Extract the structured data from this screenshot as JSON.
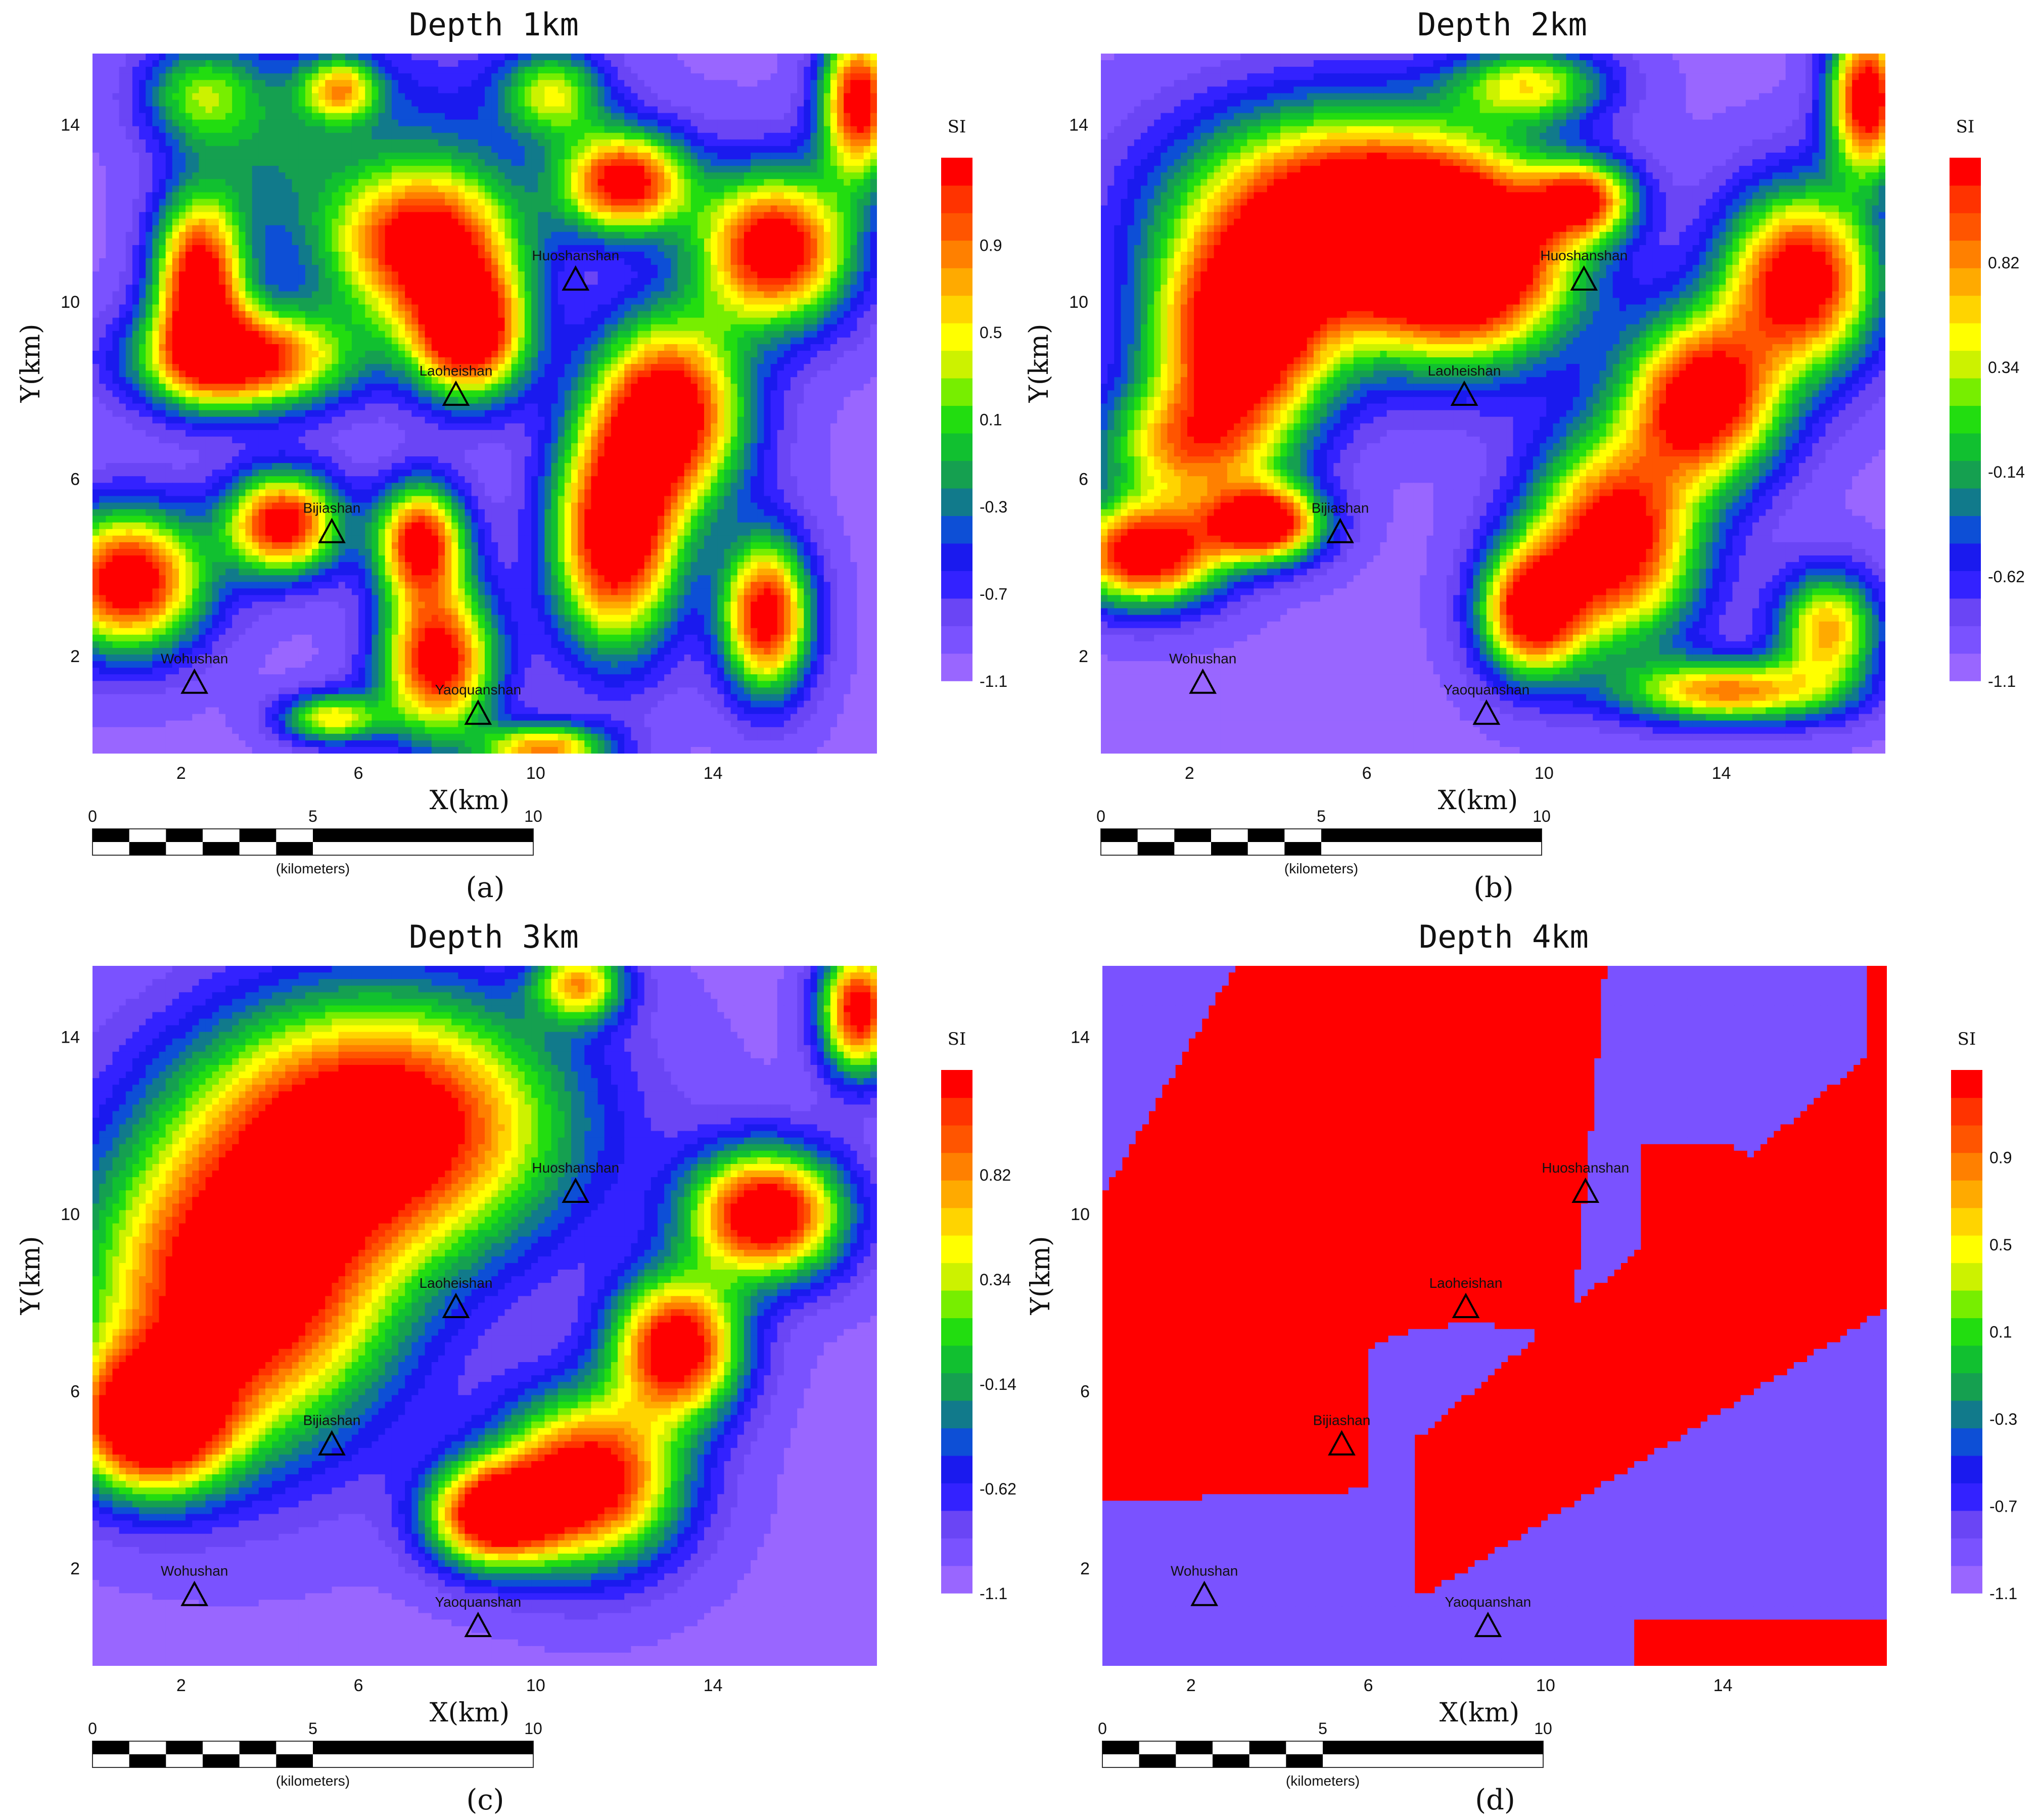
{
  "chart_data": [
    {
      "type": "heatmap",
      "panel_label": "(a)",
      "title": "Depth 1km",
      "xlabel": "X(km)",
      "ylabel": "Y(km)",
      "xticks": [
        "2",
        "6",
        "10",
        "14"
      ],
      "yticks": [
        "2",
        "6",
        "10",
        "14"
      ],
      "xlim": [
        0,
        17.7
      ],
      "ylim": [
        -0.2,
        15.6
      ],
      "colorbar": {
        "title": "SI",
        "ticks": [
          "0.9",
          "0.5",
          "0.1",
          "-0.3",
          "-0.7",
          "-1.1"
        ],
        "range": [
          -1.1,
          1.3
        ]
      },
      "stations": [
        {
          "name": "Huoshanshan",
          "x": 10.9,
          "y": 10.5
        },
        {
          "name": "Laoheishan",
          "x": 8.2,
          "y": 7.9
        },
        {
          "name": "Bijiashan",
          "x": 5.4,
          "y": 4.8
        },
        {
          "name": "Wohushan",
          "x": 2.3,
          "y": 1.4
        },
        {
          "name": "Yaoquanshan",
          "x": 8.7,
          "y": 0.7
        }
      ],
      "field_features": [
        {
          "x": 2.4,
          "y": 14.7,
          "v": -0.1,
          "sx": 0.9,
          "sy": 0.8
        },
        {
          "x": 7.0,
          "y": 14.5,
          "v": -0.7,
          "sx": 2.8,
          "sy": 1.2
        },
        {
          "x": 4.0,
          "y": 13.2,
          "v": -0.5,
          "sx": 1.3,
          "sy": 1.6
        },
        {
          "x": 2.4,
          "y": 10.5,
          "v": 1.1,
          "sx": 0.7,
          "sy": 1.3
        },
        {
          "x": 3.4,
          "y": 8.7,
          "v": 1.1,
          "sx": 1.6,
          "sy": 0.8
        },
        {
          "x": 7.5,
          "y": 11.3,
          "v": 1.2,
          "sx": 1.5,
          "sy": 1.3
        },
        {
          "x": 8.5,
          "y": 9.2,
          "v": 1.1,
          "sx": 0.9,
          "sy": 1.0
        },
        {
          "x": 12.0,
          "y": 12.7,
          "v": 1.1,
          "sx": 1.0,
          "sy": 0.8
        },
        {
          "x": 15.4,
          "y": 11.2,
          "v": 1.2,
          "sx": 1.2,
          "sy": 1.2
        },
        {
          "x": 13.0,
          "y": 7.5,
          "v": 1.2,
          "sx": 1.2,
          "sy": 1.5
        },
        {
          "x": 11.8,
          "y": 4.6,
          "v": 1.2,
          "sx": 1.0,
          "sy": 1.7
        },
        {
          "x": 17.3,
          "y": 14.5,
          "v": 1.1,
          "sx": 0.6,
          "sy": 1.2
        },
        {
          "x": 4.3,
          "y": 5.0,
          "v": 1.1,
          "sx": 0.9,
          "sy": 0.8
        },
        {
          "x": 7.4,
          "y": 4.6,
          "v": 1.0,
          "sx": 0.7,
          "sy": 0.9
        },
        {
          "x": 7.8,
          "y": 1.9,
          "v": 1.1,
          "sx": 0.9,
          "sy": 1.2
        },
        {
          "x": 0.8,
          "y": 3.7,
          "v": 1.2,
          "sx": 1.2,
          "sy": 1.1
        },
        {
          "x": 15.2,
          "y": 2.9,
          "v": 1.1,
          "sx": 0.7,
          "sy": 1.2
        },
        {
          "x": 5.6,
          "y": 14.8,
          "v": 0.2,
          "sx": 0.6,
          "sy": 0.5
        },
        {
          "x": 10.4,
          "y": 14.7,
          "v": 0.1,
          "sx": 0.8,
          "sy": 0.7
        },
        {
          "x": 5.4,
          "y": 0.6,
          "v": 0.3,
          "sx": 0.8,
          "sy": 0.4
        },
        {
          "x": 10.2,
          "y": -0.1,
          "v": 0.6,
          "sx": 1.0,
          "sy": 0.4
        }
      ]
    },
    {
      "type": "heatmap",
      "panel_label": "(b)",
      "title": "Depth 2km",
      "xlabel": "X(km)",
      "ylabel": "Y(km)",
      "xticks": [
        "2",
        "6",
        "10",
        "14"
      ],
      "yticks": [
        "2",
        "6",
        "10",
        "14"
      ],
      "xlim": [
        0,
        17.7
      ],
      "ylim": [
        -0.2,
        15.6
      ],
      "colorbar": {
        "title": "SI",
        "ticks": [
          "0.82",
          "0.34",
          "-0.14",
          "-0.62",
          "-1.1"
        ],
        "range": [
          -1.1,
          1.3
        ]
      },
      "stations": [
        {
          "name": "Huoshanshan",
          "x": 10.9,
          "y": 10.5
        },
        {
          "name": "Laoheishan",
          "x": 8.2,
          "y": 7.9
        },
        {
          "name": "Bijiashan",
          "x": 5.4,
          "y": 4.8
        },
        {
          "name": "Wohushan",
          "x": 2.3,
          "y": 1.4
        },
        {
          "name": "Yaoquanshan",
          "x": 8.7,
          "y": 0.7
        }
      ],
      "field_features": [
        {
          "x": 5.5,
          "y": 12.0,
          "v": 1.3,
          "sx": 2.5,
          "sy": 1.6
        },
        {
          "x": 3.2,
          "y": 9.2,
          "v": 1.3,
          "sx": 1.4,
          "sy": 1.5
        },
        {
          "x": 8.2,
          "y": 10.8,
          "v": 1.3,
          "sx": 1.7,
          "sy": 1.5
        },
        {
          "x": 1.0,
          "y": 4.3,
          "v": 1.2,
          "sx": 1.2,
          "sy": 0.8
        },
        {
          "x": 3.7,
          "y": 5.0,
          "v": 1.2,
          "sx": 0.9,
          "sy": 0.6
        },
        {
          "x": 2.0,
          "y": 6.7,
          "v": 0.4,
          "sx": 1.4,
          "sy": 1.0
        },
        {
          "x": 15.8,
          "y": 10.5,
          "v": 1.2,
          "sx": 1.2,
          "sy": 1.4
        },
        {
          "x": 13.6,
          "y": 7.8,
          "v": 1.2,
          "sx": 1.2,
          "sy": 1.3
        },
        {
          "x": 11.6,
          "y": 4.6,
          "v": 1.2,
          "sx": 1.3,
          "sy": 1.6
        },
        {
          "x": 9.7,
          "y": 3.0,
          "v": 1.0,
          "sx": 0.8,
          "sy": 1.0
        },
        {
          "x": 17.3,
          "y": 14.6,
          "v": 1.2,
          "sx": 0.6,
          "sy": 1.2
        },
        {
          "x": 10.9,
          "y": 12.3,
          "v": 0.6,
          "sx": 0.8,
          "sy": 0.6
        },
        {
          "x": 14.2,
          "y": 1.2,
          "v": 0.6,
          "sx": 1.6,
          "sy": 0.5
        },
        {
          "x": 16.4,
          "y": 2.6,
          "v": 0.5,
          "sx": 0.8,
          "sy": 0.9
        },
        {
          "x": 9.7,
          "y": 14.9,
          "v": 0.2,
          "sx": 1.2,
          "sy": 0.6
        }
      ]
    },
    {
      "type": "heatmap",
      "panel_label": "(c)",
      "title": "Depth 3km",
      "xlabel": "X(km)",
      "ylabel": "Y(km)",
      "xticks": [
        "2",
        "6",
        "10",
        "14"
      ],
      "yticks": [
        "2",
        "6",
        "10",
        "14"
      ],
      "xlim": [
        0,
        17.7
      ],
      "ylim": [
        -0.2,
        15.6
      ],
      "colorbar": {
        "title": "SI",
        "ticks": [
          "0.82",
          "0.34",
          "-0.14",
          "-0.62",
          "-1.1"
        ],
        "range": [
          -1.1,
          1.3
        ]
      },
      "stations": [
        {
          "name": "Huoshanshan",
          "x": 10.9,
          "y": 10.5
        },
        {
          "name": "Laoheishan",
          "x": 8.2,
          "y": 7.9
        },
        {
          "name": "Bijiashan",
          "x": 5.4,
          "y": 4.8
        },
        {
          "name": "Wohushan",
          "x": 2.3,
          "y": 1.4
        },
        {
          "name": "Yaoquanshan",
          "x": 8.7,
          "y": 0.7
        }
      ],
      "field_features": [
        {
          "x": 6.5,
          "y": 12.0,
          "v": 1.3,
          "sx": 2.8,
          "sy": 2.0
        },
        {
          "x": 3.3,
          "y": 8.2,
          "v": 1.3,
          "sx": 2.3,
          "sy": 2.3
        },
        {
          "x": 1.3,
          "y": 5.3,
          "v": 1.3,
          "sx": 1.2,
          "sy": 1.1
        },
        {
          "x": 15.2,
          "y": 10.0,
          "v": 1.3,
          "sx": 1.2,
          "sy": 1.0
        },
        {
          "x": 13.2,
          "y": 7.0,
          "v": 1.2,
          "sx": 1.0,
          "sy": 1.1
        },
        {
          "x": 11.2,
          "y": 4.0,
          "v": 1.2,
          "sx": 1.4,
          "sy": 1.3
        },
        {
          "x": 9.0,
          "y": 3.2,
          "v": 1.1,
          "sx": 1.0,
          "sy": 0.8
        },
        {
          "x": 17.3,
          "y": 14.6,
          "v": 1.1,
          "sx": 0.6,
          "sy": 1.0
        },
        {
          "x": 11.0,
          "y": 15.2,
          "v": 0.4,
          "sx": 0.7,
          "sy": 0.6
        }
      ]
    },
    {
      "type": "heatmap",
      "panel_label": "(d)",
      "title": "Depth 4km",
      "xlabel": "X(km)",
      "ylabel": "Y(km)",
      "xticks": [
        "2",
        "6",
        "10",
        "14"
      ],
      "yticks": [
        "2",
        "6",
        "10",
        "14"
      ],
      "xlim": [
        0,
        17.7
      ],
      "ylim": [
        -0.2,
        15.6
      ],
      "colorbar": {
        "title": "SI",
        "ticks": [
          "0.9",
          "0.5",
          "0.1",
          "-0.3",
          "-0.7",
          "-1.1"
        ],
        "range": [
          -1.1,
          1.3
        ]
      },
      "stations": [
        {
          "name": "Huoshanshan",
          "x": 10.9,
          "y": 10.5
        },
        {
          "name": "Laoheishan",
          "x": 8.2,
          "y": 7.9
        },
        {
          "name": "Bijiashan",
          "x": 5.4,
          "y": 4.8
        },
        {
          "name": "Wohushan",
          "x": 2.3,
          "y": 1.4
        },
        {
          "name": "Yaoquanshan",
          "x": 8.7,
          "y": 0.7
        }
      ],
      "field_features": []
    }
  ],
  "scale_bar": {
    "ticks": [
      "0",
      "5",
      "10"
    ],
    "unit": "(kilometers)"
  },
  "colors": {
    "ramp": [
      "#9966ff",
      "#7a52ff",
      "#6a45f5",
      "#3322ff",
      "#1a1aee",
      "#0d4fd6",
      "#117a8b",
      "#15a050",
      "#11c030",
      "#22dd10",
      "#77ee00",
      "#ccf200",
      "#ffff00",
      "#ffd400",
      "#ffaa00",
      "#ff8000",
      "#ff5500",
      "#ff3300",
      "#ff0000"
    ],
    "background": "#ffffff",
    "marker": "#000000"
  }
}
